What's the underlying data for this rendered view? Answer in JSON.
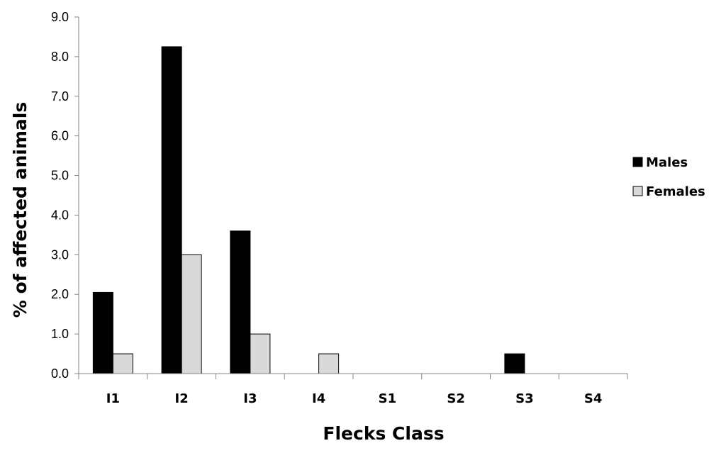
{
  "chart_data": {
    "type": "bar",
    "categories": [
      "I1",
      "I2",
      "I3",
      "I4",
      "S1",
      "S2",
      "S3",
      "S4"
    ],
    "series": [
      {
        "name": "Males",
        "values": [
          2.05,
          8.25,
          3.6,
          0.0,
          0.0,
          0.0,
          0.5,
          0.0
        ],
        "color": "#000000"
      },
      {
        "name": "Females",
        "values": [
          0.5,
          3.0,
          1.0,
          0.5,
          0.0,
          0.0,
          0.0,
          0.0
        ],
        "color": "#d9d9d9"
      }
    ],
    "title": "",
    "xlabel": "Flecks Class",
    "ylabel": "% of affected animals",
    "ylim": [
      0,
      9
    ],
    "yticks": [
      "0.0",
      "1.0",
      "2.0",
      "3.0",
      "4.0",
      "5.0",
      "6.0",
      "7.0",
      "8.0",
      "9.0"
    ],
    "grid": false,
    "legend_position": "right"
  }
}
